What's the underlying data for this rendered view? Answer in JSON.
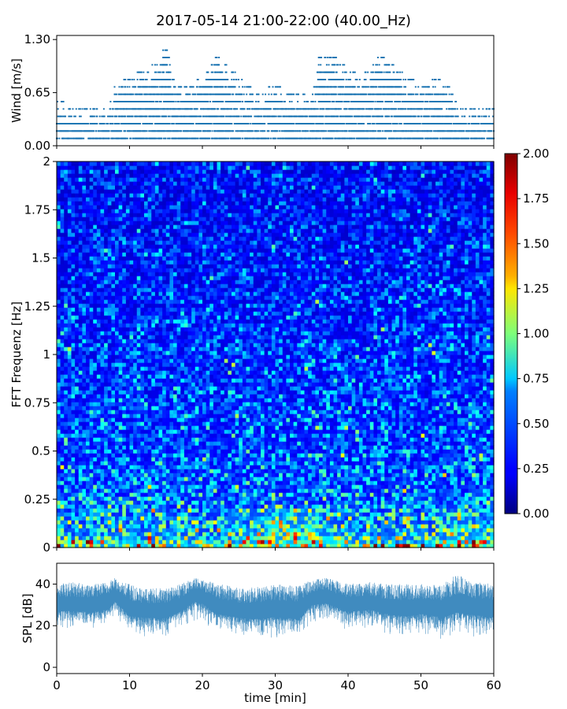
{
  "figure": {
    "title": "2017-05-14 21:00-22:00 (40.00_Hz)"
  },
  "chart_data": [
    {
      "type": "scatter",
      "name": "wind",
      "ylabel": "Wind [m/s]",
      "ylim": [
        0,
        1.35
      ],
      "xlim": [
        0,
        60
      ],
      "yticks": [
        "0.00",
        "0.65",
        "1.30"
      ],
      "ytick_values": [
        0,
        0.65,
        1.3
      ],
      "levels": [
        0.09,
        0.18,
        0.27,
        0.36,
        0.45,
        0.54,
        0.63,
        0.72,
        0.81,
        0.9,
        0.99,
        1.08,
        1.17,
        1.28
      ],
      "profile": {
        "x": [
          0,
          2,
          4,
          6,
          7,
          8,
          10,
          12,
          14,
          15,
          16,
          18,
          20,
          22,
          24,
          26,
          28,
          30,
          32,
          34,
          35,
          36,
          38,
          40,
          42,
          44,
          46,
          48,
          50,
          52,
          54,
          55,
          57,
          60
        ],
        "max_level_index": [
          5,
          4,
          4,
          4,
          3,
          7,
          8,
          9,
          10,
          13,
          8,
          7,
          8,
          11,
          9,
          7,
          6,
          7,
          6,
          6,
          5,
          11,
          11,
          9,
          8,
          11,
          10,
          8,
          7,
          8,
          7,
          4,
          4,
          4
        ]
      },
      "color": "#1f77b4"
    },
    {
      "type": "heatmap",
      "name": "spectrogram",
      "ylabel": "FFT Frequenz [Hz]",
      "xlim": [
        0,
        60
      ],
      "ylim": [
        0,
        2
      ],
      "yticks": [
        "0",
        "0.25",
        "0.5",
        "0.75",
        "1",
        "1.25",
        "1.5",
        "1.75",
        "2"
      ],
      "ytick_values": [
        0,
        0.25,
        0.5,
        0.75,
        1,
        1.25,
        1.5,
        1.75,
        2
      ],
      "colormap": "jet",
      "colorbar": {
        "range": [
          0,
          2
        ],
        "ticks": [
          "0.00",
          "0.25",
          "0.50",
          "0.75",
          "1.00",
          "1.25",
          "1.50",
          "1.75",
          "2.00"
        ],
        "tick_values": [
          0,
          0.25,
          0.5,
          0.75,
          1,
          1.25,
          1.5,
          1.75,
          2
        ]
      },
      "mean_profile": {
        "frequency_hz": [
          0,
          0.03,
          0.06,
          0.1,
          0.2,
          0.3,
          0.5,
          1.0,
          1.5,
          2.0
        ],
        "typical_value": [
          1.25,
          1.0,
          0.8,
          0.7,
          0.6,
          0.52,
          0.46,
          0.4,
          0.34,
          0.3
        ]
      }
    },
    {
      "type": "line",
      "name": "spl",
      "ylabel": "SPL [dB]",
      "xlabel": "time [min]",
      "xlim": [
        0,
        60
      ],
      "ylim": [
        -3,
        50
      ],
      "yticks": [
        "0",
        "20",
        "40"
      ],
      "ytick_values": [
        0,
        20,
        40
      ],
      "xticks": [
        "0",
        "10",
        "20",
        "30",
        "40",
        "50",
        "60"
      ],
      "xtick_values": [
        0,
        10,
        20,
        30,
        40,
        50,
        60
      ],
      "envelope": {
        "x": [
          0,
          2,
          5,
          7,
          8,
          10,
          12,
          15,
          17,
          19,
          20,
          22,
          25,
          28,
          30,
          33,
          35,
          37,
          40,
          43,
          45,
          48,
          50,
          53,
          55,
          57,
          60
        ],
        "mean": [
          30,
          30,
          30,
          31,
          35,
          28,
          27,
          27,
          30,
          35,
          34,
          29,
          27,
          27,
          28,
          27,
          33,
          34,
          30,
          31,
          29,
          28,
          29,
          28,
          30,
          29,
          28
        ],
        "upper": [
          40,
          41,
          40,
          41,
          43,
          40,
          38,
          38,
          40,
          43,
          42,
          41,
          38,
          39,
          40,
          39,
          42,
          43,
          40,
          41,
          40,
          40,
          40,
          40,
          45,
          41,
          40
        ],
        "lower": [
          18,
          18,
          17,
          18,
          22,
          15,
          14,
          14,
          17,
          22,
          20,
          16,
          14,
          12,
          13,
          12,
          20,
          21,
          17,
          18,
          16,
          14,
          16,
          12,
          16,
          14,
          12
        ]
      },
      "color": "#1f77b4"
    }
  ]
}
